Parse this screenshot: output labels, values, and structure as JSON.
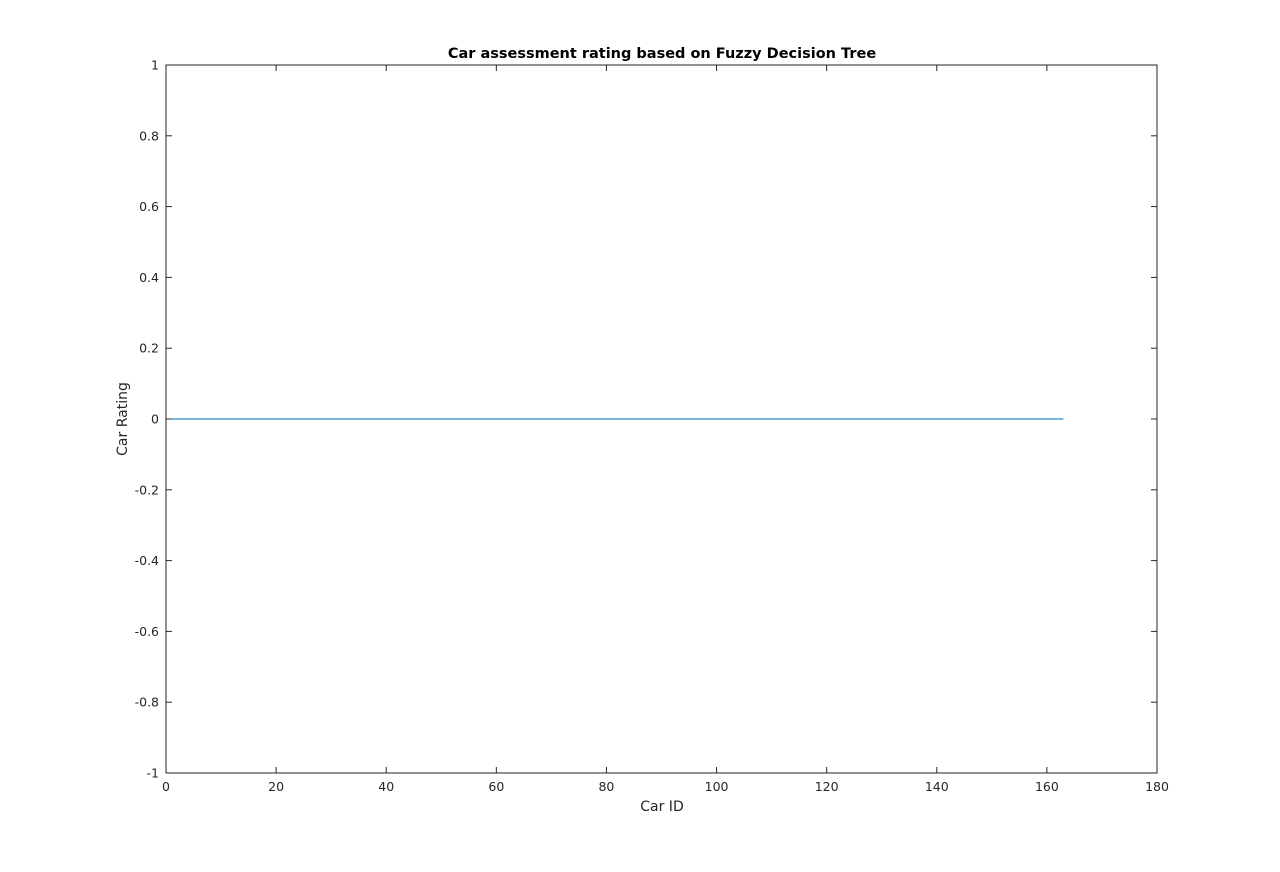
{
  "chart_data": {
    "type": "line",
    "title": "Car assessment rating based on Fuzzy Decision Tree",
    "xlabel": "Car ID",
    "ylabel": "Car Rating",
    "xlim": [
      0,
      180
    ],
    "ylim": [
      -1,
      1
    ],
    "xticks": [
      0,
      20,
      40,
      60,
      80,
      100,
      120,
      140,
      160,
      180
    ],
    "yticks": [
      -1,
      -0.8,
      -0.6,
      -0.4,
      -0.2,
      0,
      0.2,
      0.4,
      0.6,
      0.8,
      1
    ],
    "xtick_labels": [
      "0",
      "20",
      "40",
      "60",
      "80",
      "100",
      "120",
      "140",
      "160",
      "180"
    ],
    "ytick_labels": [
      "-1",
      "-0.8",
      "-0.6",
      "-0.4",
      "-0.2",
      "0",
      "0.2",
      "0.4",
      "0.6",
      "0.8",
      "1"
    ],
    "grid": false,
    "series": [
      {
        "color": "#4a9fd8",
        "x": [
          1,
          163
        ],
        "y": [
          0,
          0
        ]
      }
    ]
  }
}
